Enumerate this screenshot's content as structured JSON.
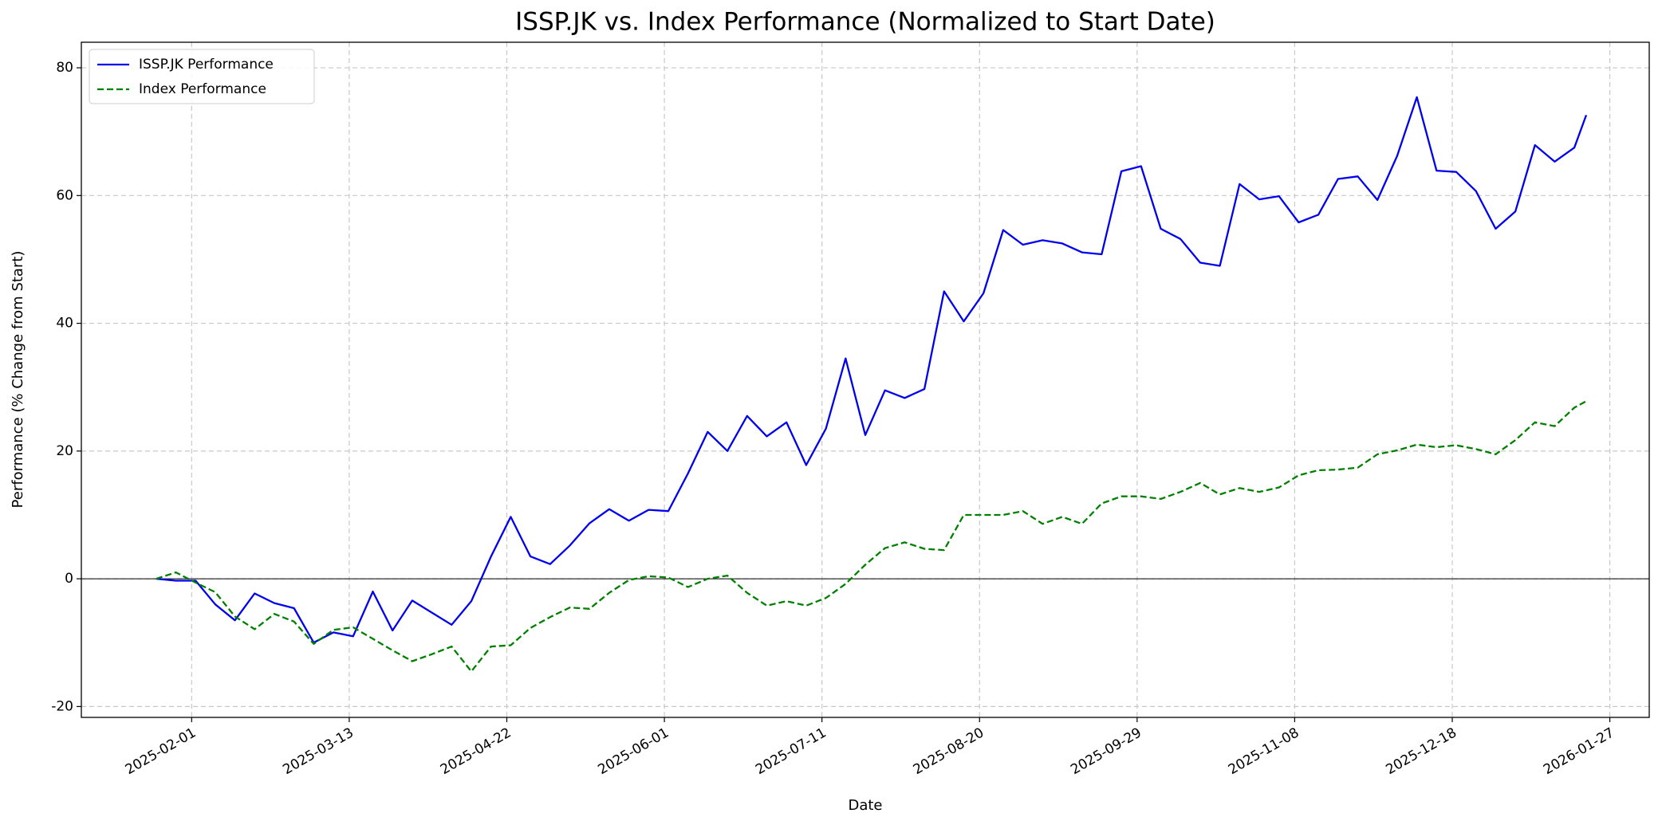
{
  "chart_data": {
    "type": "line",
    "title": "ISSP.JK vs. Index Performance (Normalized to Start Date)",
    "xlabel": "Date",
    "ylabel": "Performance (% Change from Start)",
    "x": [
      "2025-01-23",
      "2025-01-28",
      "2025-02-02",
      "2025-02-07",
      "2025-02-12",
      "2025-02-17",
      "2025-02-22",
      "2025-02-27",
      "2025-03-04",
      "2025-03-09",
      "2025-03-14",
      "2025-03-19",
      "2025-03-24",
      "2025-03-29",
      "2025-04-03",
      "2025-04-08",
      "2025-04-13",
      "2025-04-18",
      "2025-04-23",
      "2025-04-28",
      "2025-05-03",
      "2025-05-08",
      "2025-05-13",
      "2025-05-18",
      "2025-05-23",
      "2025-05-28",
      "2025-06-02",
      "2025-06-07",
      "2025-06-12",
      "2025-06-17",
      "2025-06-22",
      "2025-06-27",
      "2025-07-02",
      "2025-07-07",
      "2025-07-12",
      "2025-07-17",
      "2025-07-22",
      "2025-07-27",
      "2025-08-01",
      "2025-08-06",
      "2025-08-11",
      "2025-08-16",
      "2025-08-21",
      "2025-08-26",
      "2025-08-31",
      "2025-09-05",
      "2025-09-10",
      "2025-09-15",
      "2025-09-20",
      "2025-09-25",
      "2025-09-30",
      "2025-10-05",
      "2025-10-10",
      "2025-10-15",
      "2025-10-20",
      "2025-10-25",
      "2025-10-30",
      "2025-11-04",
      "2025-11-09",
      "2025-11-14",
      "2025-11-19",
      "2025-11-24",
      "2025-11-29",
      "2025-12-04",
      "2025-12-09",
      "2025-12-14",
      "2025-12-19",
      "2025-12-24",
      "2025-12-29",
      "2026-01-03",
      "2026-01-08",
      "2026-01-13",
      "2026-01-18",
      "2026-01-21"
    ],
    "series": [
      {
        "name": "ISSP.JK Performance",
        "color": "#0000ee",
        "style": "solid",
        "values": [
          0,
          -0.3,
          -0.3,
          -4,
          -6.5,
          -2.3,
          -3.8,
          -4.6,
          -10,
          -8.4,
          -9,
          -2,
          -8.1,
          -3.4,
          -5.3,
          -7.2,
          -3.5,
          3.5,
          9.7,
          3.5,
          2.3,
          5.2,
          8.7,
          10.9,
          9.1,
          10.8,
          10.6,
          16.5,
          23,
          20,
          25.5,
          22.3,
          24.5,
          17.8,
          23.5,
          34.5,
          22.5,
          29.5,
          28.3,
          29.7,
          45,
          40.3,
          44.7,
          54.6,
          52.3,
          53,
          52.5,
          51.1,
          50.8,
          63.8,
          64.6,
          54.8,
          53.2,
          49.5,
          49,
          61.8,
          59.4,
          59.9,
          55.8,
          57,
          62.6,
          63,
          59.3,
          66.2,
          75.4,
          63.9,
          63.7,
          60.7,
          54.8,
          57.5,
          67.9,
          65.3,
          67.5,
          72.6
        ]
      },
      {
        "name": "Index Performance",
        "color": "#008000",
        "style": "dashed",
        "values": [
          0,
          1,
          -0.6,
          -2.1,
          -5.9,
          -7.9,
          -5.5,
          -6.7,
          -10.2,
          -8,
          -7.6,
          -9.4,
          -11.2,
          -12.9,
          -11.8,
          -10.6,
          -14.5,
          -10.6,
          -10.4,
          -7.7,
          -6,
          -4.5,
          -4.7,
          -2.2,
          -0.2,
          0.4,
          0.2,
          -1.3,
          0,
          0.5,
          -2.2,
          -4.2,
          -3.5,
          -4.2,
          -3,
          -0.8,
          2.2,
          4.8,
          5.7,
          4.7,
          4.5,
          10,
          10,
          10,
          10.6,
          8.6,
          9.7,
          8.6,
          11.8,
          12.9,
          12.9,
          12.5,
          13.6,
          15,
          13.2,
          14.2,
          13.6,
          14.3,
          16.2,
          17,
          17.1,
          17.4,
          19.5,
          20.1,
          21,
          20.6,
          20.9,
          20.3,
          19.5,
          21.7,
          24.5,
          23.9,
          26.8,
          27.8
        ]
      }
    ],
    "xlim": [
      "2025-01-04",
      "2026-02-06"
    ],
    "xticks": [
      "2025-02-01",
      "2025-03-13",
      "2025-04-22",
      "2025-06-01",
      "2025-07-11",
      "2025-08-20",
      "2025-09-29",
      "2025-11-08",
      "2025-12-18",
      "2026-01-27"
    ],
    "ylim": [
      -21.7,
      84.0
    ],
    "yticks": [
      -20,
      0,
      20,
      40,
      60,
      80
    ],
    "hline": 0,
    "grid": true,
    "legend": "upper left"
  }
}
